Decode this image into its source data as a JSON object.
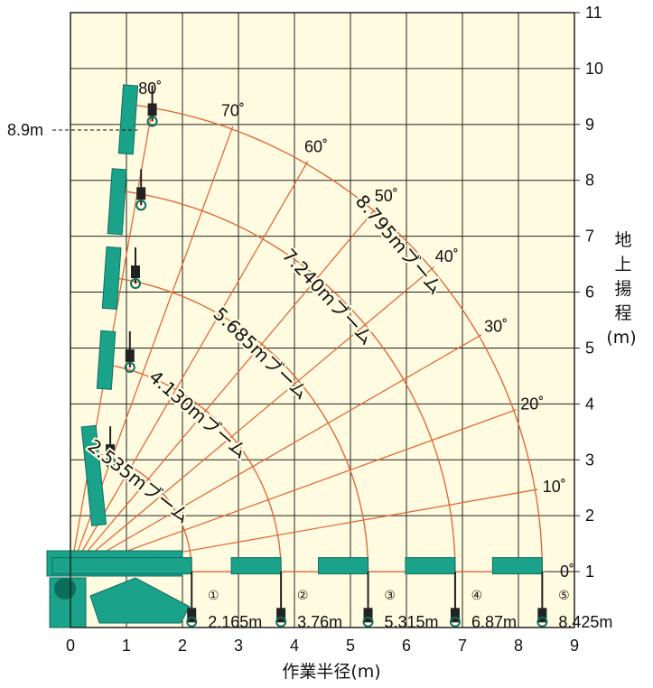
{
  "chart_data": {
    "type": "diagram",
    "xlabel": "作業半径(m)",
    "ylabel": "地上揚程(m)",
    "xlim": [
      0,
      9
    ],
    "ylim": [
      0,
      11
    ],
    "x_ticks": [
      "0",
      "1",
      "2",
      "3",
      "4",
      "5",
      "6",
      "7",
      "8",
      "9"
    ],
    "y_ticks": [
      "1",
      "2",
      "3",
      "4",
      "5",
      "6",
      "7",
      "8",
      "9",
      "10",
      "11"
    ],
    "max_height_label": "8.9m",
    "max_height_value": 8.9,
    "angle_lines": [
      {
        "label": "80˚",
        "deg": 80
      },
      {
        "label": "70˚",
        "deg": 70
      },
      {
        "label": "60˚",
        "deg": 60
      },
      {
        "label": "50˚",
        "deg": 50
      },
      {
        "label": "40˚",
        "deg": 40
      },
      {
        "label": "30˚",
        "deg": 30
      },
      {
        "label": "20˚",
        "deg": 20
      },
      {
        "label": "10˚",
        "deg": 10
      },
      {
        "label": "0˚",
        "deg": 0
      }
    ],
    "boom_arcs": [
      {
        "label": "2.535mブーム",
        "radius": 2.165
      },
      {
        "label": "4.130mブーム",
        "radius": 3.76
      },
      {
        "label": "5.685mブーム",
        "radius": 5.315
      },
      {
        "label": "7.240mブーム",
        "radius": 6.87
      },
      {
        "label": "8.795mブーム",
        "radius": 8.425
      }
    ],
    "stages": [
      {
        "num": "①",
        "radius_label": "2.165m",
        "radius": 2.165
      },
      {
        "num": "②",
        "radius_label": "3.76m",
        "radius": 3.76
      },
      {
        "num": "③",
        "radius_label": "5.315m",
        "radius": 5.315
      },
      {
        "num": "④",
        "radius_label": "6.87m",
        "radius": 6.87
      },
      {
        "num": "⑤",
        "radius_label": "8.425m",
        "radius": 8.425
      }
    ]
  },
  "colors": {
    "background": "#fffbe0",
    "grid": "#222222",
    "curve": "#e06030",
    "crane": "#1aa38a",
    "crane_dark": "#0b6e5d"
  }
}
